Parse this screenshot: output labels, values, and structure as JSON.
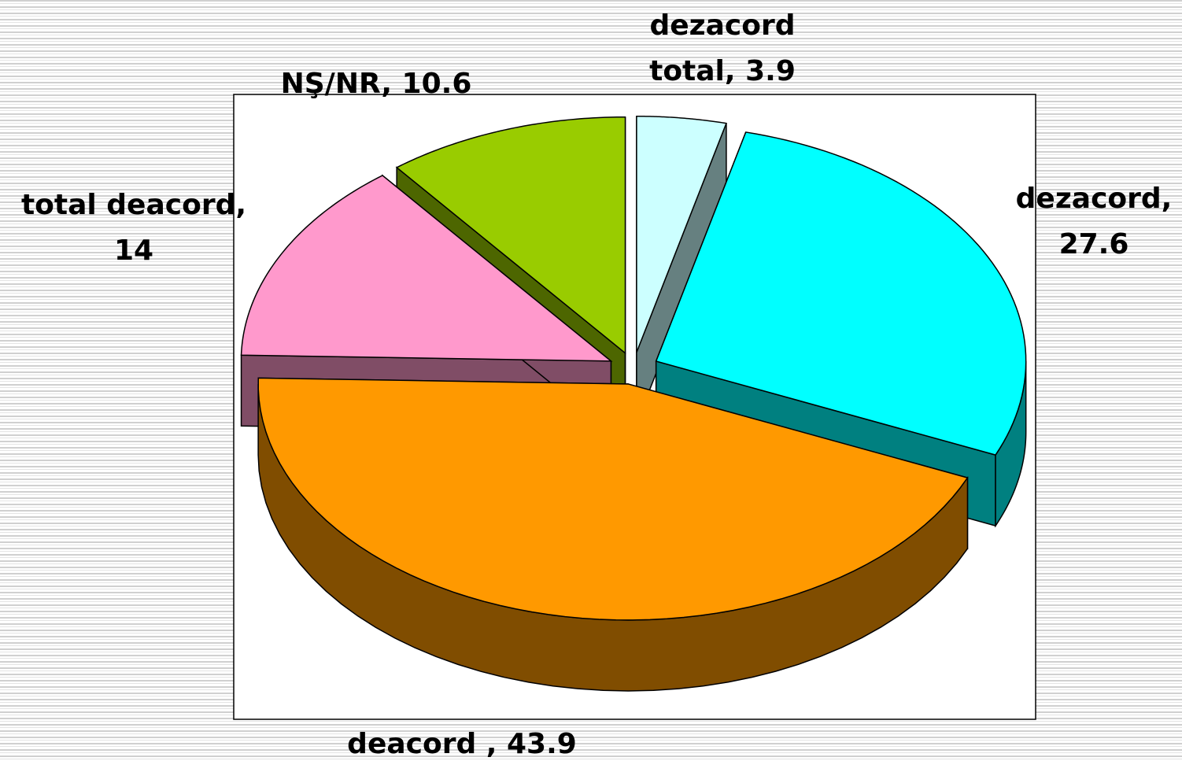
{
  "chart_data": {
    "type": "pie3d",
    "values": [
      3.9,
      27.6,
      43.9,
      14,
      10.6
    ],
    "value_labels": [
      "dezacord total, 3.9",
      "dezacord, 27.6",
      "deacord , 43.9",
      "total deacord, 14",
      "NŞ/NR, 10.6"
    ],
    "colors": [
      "#ccffff",
      "#00ffff",
      "#ff9900",
      "#ff99cc",
      "#99cc00"
    ]
  }
}
